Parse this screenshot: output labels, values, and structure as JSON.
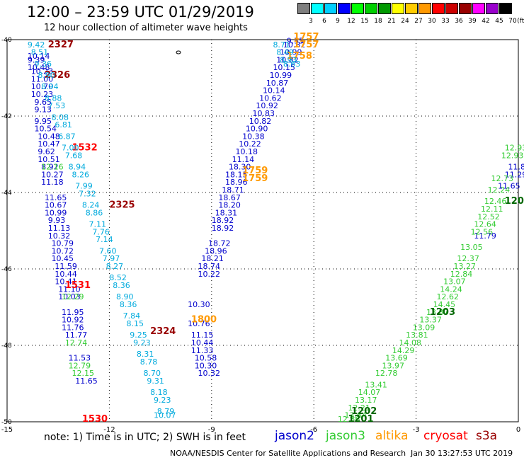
{
  "title": "12:00 – 23:59 UTC 01/29/2019",
  "subtitle": "12 hour collection of altimeter wave heights",
  "legend": {
    "labels": [
      "3",
      "6",
      "9",
      "12",
      "15",
      "18",
      "21",
      "24",
      "27",
      "30",
      "33",
      "36",
      "39",
      "42",
      "45",
      "70",
      "(ft)"
    ],
    "colors": [
      "#7f7f7f",
      "#00ffff",
      "#00cfff",
      "#0000ff",
      "#00ff00",
      "#00cf00",
      "#009900",
      "#ffff00",
      "#ffcc00",
      "#ff9900",
      "#ff0000",
      "#cc0000",
      "#990000",
      "#ff00ff",
      "#9900cc",
      "#000000"
    ]
  },
  "chart_data": {
    "type": "scatter",
    "xlim": [
      -15,
      0
    ],
    "ylim": [
      -50,
      -40
    ],
    "xticks": [
      "-15",
      "-12",
      "-9",
      "-6",
      "-3",
      "0"
    ],
    "yticks": [
      "-40",
      "-42",
      "-44",
      "-46",
      "-48",
      "-50"
    ],
    "series": [
      {
        "name": "jason2",
        "color": "#0000cc",
        "points": [
          [
            -14.4,
            -40.5,
            "10.14"
          ],
          [
            -14.4,
            -40.6,
            "9.39"
          ],
          [
            -14.4,
            -40.8,
            "10.48"
          ],
          [
            -14.3,
            -40.9,
            "10.23"
          ],
          [
            -14.3,
            -41.1,
            "11.00"
          ],
          [
            -14.3,
            -41.3,
            "10.70"
          ],
          [
            -14.3,
            -41.5,
            "10.23"
          ],
          [
            -14.2,
            -41.7,
            "9.65"
          ],
          [
            -14.2,
            -41.9,
            "9.13"
          ],
          [
            -14.2,
            -42.2,
            "9.95"
          ],
          [
            -14.2,
            -42.4,
            "10.54"
          ],
          [
            -14.1,
            -42.6,
            "10.48"
          ],
          [
            -14.1,
            -42.8,
            "10.47"
          ],
          [
            -14.1,
            -43.0,
            "9.62"
          ],
          [
            -14.1,
            -43.2,
            "10.51"
          ],
          [
            -14.0,
            -43.4,
            "8.92"
          ],
          [
            -14.0,
            -43.6,
            "10.27"
          ],
          [
            -14.0,
            -43.8,
            "11.18"
          ],
          [
            -13.9,
            -44.2,
            "11.65"
          ],
          [
            -13.9,
            -44.4,
            "10.67"
          ],
          [
            -13.9,
            -44.6,
            "10.99"
          ],
          [
            -13.8,
            -44.8,
            "9.93"
          ],
          [
            -13.8,
            -45.0,
            "11.13"
          ],
          [
            -13.8,
            -45.2,
            "10.32"
          ],
          [
            -13.7,
            -45.4,
            "10.79"
          ],
          [
            -13.7,
            -45.6,
            "10.72"
          ],
          [
            -13.7,
            -45.8,
            "10.45"
          ],
          [
            -13.6,
            -46.0,
            "11.59"
          ],
          [
            -13.6,
            -46.2,
            "10.44"
          ],
          [
            -13.6,
            -46.4,
            "10.41"
          ],
          [
            -13.5,
            -46.6,
            "11.10"
          ],
          [
            -13.5,
            -46.8,
            "10.03"
          ],
          [
            -13.4,
            -47.2,
            "11.95"
          ],
          [
            -13.4,
            -47.4,
            "10.92"
          ],
          [
            -13.4,
            -47.6,
            "11.76"
          ],
          [
            -13.3,
            -47.8,
            "11.77"
          ],
          [
            -13.2,
            -48.4,
            "11.53"
          ],
          [
            -13.0,
            -49.0,
            "11.65"
          ],
          [
            -9.7,
            -47.0,
            "10.30"
          ],
          [
            -9.7,
            -47.5,
            "10.76"
          ],
          [
            -9.6,
            -47.8,
            "11.15"
          ],
          [
            -9.6,
            -48.0,
            "10.44"
          ],
          [
            -9.6,
            -48.2,
            "11.33"
          ],
          [
            -9.5,
            -48.4,
            "10.58"
          ],
          [
            -9.5,
            -48.6,
            "10.30"
          ],
          [
            -9.4,
            -48.8,
            "10.32"
          ],
          [
            -9.4,
            -46.2,
            "10.22"
          ],
          [
            -9.4,
            -46.0,
            "18.74"
          ],
          [
            -9.3,
            -45.8,
            "18.21"
          ],
          [
            -9.2,
            -45.6,
            "18.96"
          ],
          [
            -9.1,
            -45.4,
            "18.72"
          ],
          [
            -9.0,
            -45.0,
            "18.92"
          ],
          [
            -9.0,
            -44.8,
            "18.92"
          ],
          [
            -8.9,
            -44.6,
            "18.31"
          ],
          [
            -8.8,
            -44.4,
            "18.20"
          ],
          [
            -8.8,
            -44.2,
            "18.67"
          ],
          [
            -8.7,
            -44.0,
            "18.71"
          ],
          [
            -8.6,
            -43.8,
            "18.96"
          ],
          [
            -8.6,
            -43.6,
            "18.15"
          ],
          [
            -8.5,
            -43.4,
            "18.30"
          ],
          [
            -8.4,
            -43.2,
            "11.14"
          ],
          [
            -8.3,
            -43.0,
            "10.18"
          ],
          [
            -8.2,
            -42.8,
            "10.22"
          ],
          [
            -8.1,
            -42.6,
            "10.38"
          ],
          [
            -8.0,
            -42.4,
            "10.90"
          ],
          [
            -7.9,
            -42.2,
            "10.82"
          ],
          [
            -7.8,
            -42.0,
            "10.83"
          ],
          [
            -7.7,
            -41.8,
            "10.92"
          ],
          [
            -7.6,
            -41.6,
            "10.62"
          ],
          [
            -7.5,
            -41.4,
            "10.14"
          ],
          [
            -7.4,
            -41.2,
            "10.87"
          ],
          [
            -7.3,
            -41.0,
            "10.99"
          ],
          [
            -7.2,
            -40.8,
            "10.15"
          ],
          [
            -7.1,
            -40.6,
            "10.82"
          ],
          [
            -7.0,
            -40.4,
            "10.99"
          ],
          [
            -6.9,
            -40.2,
            "10.82"
          ],
          [
            -6.8,
            -40.1,
            "9.55"
          ],
          [
            -0.3,
            -43.4,
            "11.83"
          ],
          [
            -0.4,
            -43.6,
            "11.29"
          ],
          [
            -0.6,
            -43.9,
            "11.65"
          ],
          [
            -1.3,
            -45.2,
            "11.79"
          ]
        ]
      },
      {
        "name": "jason3",
        "color": "#33cc33",
        "points": [
          [
            -14.0,
            -43.4,
            "12.16"
          ],
          [
            -13.4,
            -46.8,
            "12.29"
          ],
          [
            -13.3,
            -48.0,
            "12.74"
          ],
          [
            -13.2,
            -48.6,
            "12.79"
          ],
          [
            -13.1,
            -48.8,
            "12.15"
          ],
          [
            -0.4,
            -42.9,
            "12.93"
          ],
          [
            -0.5,
            -43.1,
            "12.93"
          ],
          [
            -0.8,
            -43.7,
            "12.73"
          ],
          [
            -0.9,
            -44.0,
            "12.24"
          ],
          [
            -1.0,
            -44.3,
            "12.46"
          ],
          [
            -1.1,
            -44.5,
            "12.11"
          ],
          [
            -1.2,
            -44.7,
            "12.52"
          ],
          [
            -1.3,
            -44.9,
            "12.64"
          ],
          [
            -1.4,
            -45.1,
            "12.56"
          ],
          [
            -1.7,
            -45.5,
            "13.05"
          ],
          [
            -1.8,
            -45.8,
            "12.37"
          ],
          [
            -1.9,
            -46.0,
            "13.27"
          ],
          [
            -2.0,
            -46.2,
            "12.84"
          ],
          [
            -2.2,
            -46.4,
            "13.07"
          ],
          [
            -2.3,
            -46.6,
            "14.24"
          ],
          [
            -2.4,
            -46.8,
            "12.62"
          ],
          [
            -2.5,
            -47.0,
            "14.45"
          ],
          [
            -2.7,
            -47.2,
            "13.87"
          ],
          [
            -2.9,
            -47.4,
            "13.37"
          ],
          [
            -3.1,
            -47.6,
            "13.09"
          ],
          [
            -3.3,
            -47.8,
            "13.81"
          ],
          [
            -3.5,
            -48.0,
            "14.08"
          ],
          [
            -3.7,
            -48.2,
            "14.29"
          ],
          [
            -3.9,
            -48.4,
            "13.69"
          ],
          [
            -4.0,
            -48.6,
            "13.97"
          ],
          [
            -4.2,
            -48.8,
            "12.78"
          ],
          [
            -4.5,
            -49.1,
            "13.41"
          ],
          [
            -4.7,
            -49.3,
            "14.07"
          ],
          [
            -4.8,
            -49.5,
            "13.17"
          ],
          [
            -5.0,
            -49.7,
            "12.21"
          ],
          [
            -5.1,
            -49.9,
            "13.64"
          ],
          [
            -5.3,
            -50.0,
            "12.86"
          ]
        ]
      },
      {
        "name": "altika",
        "color": "#ff9900",
        "points": [
          [
            -6.6,
            -40.0,
            "1757"
          ],
          [
            -6.6,
            -40.2,
            "1757"
          ],
          [
            -6.8,
            -40.5,
            "1758"
          ],
          [
            -8.1,
            -43.5,
            "1759"
          ],
          [
            -8.1,
            -43.7,
            "1759"
          ],
          [
            -9.6,
            -47.4,
            "1800"
          ]
        ]
      },
      {
        "name": "cryosat",
        "color": "#ff0000",
        "points": [
          [
            -13.1,
            -42.9,
            "1532"
          ],
          [
            -13.3,
            -46.5,
            "1531"
          ],
          [
            -12.8,
            -50.0,
            "1530"
          ]
        ]
      },
      {
        "name": "s3a",
        "color": "#990000",
        "points": [
          [
            -13.8,
            -40.2,
            "2327"
          ],
          [
            -13.9,
            -41.0,
            "2326"
          ],
          [
            -12.0,
            -44.4,
            "2325"
          ],
          [
            -10.8,
            -47.7,
            "2324"
          ]
        ]
      },
      {
        "name": "",
        "color": "#00aadd",
        "points": [
          [
            -14.4,
            -40.2,
            "9.42"
          ],
          [
            -14.3,
            -40.4,
            "8.51"
          ],
          [
            -14.2,
            -40.7,
            "9.36"
          ],
          [
            -14.1,
            -41.0,
            "8.90"
          ],
          [
            -14.0,
            -41.3,
            "8.94"
          ],
          [
            -13.9,
            -41.6,
            "8.88"
          ],
          [
            -13.8,
            -41.8,
            "7.53"
          ],
          [
            -13.7,
            -42.1,
            "8.08"
          ],
          [
            -13.6,
            -42.3,
            "6.81"
          ],
          [
            -13.5,
            -42.6,
            "6.87"
          ],
          [
            -13.4,
            -42.9,
            "7.00"
          ],
          [
            -13.3,
            -43.1,
            "7.68"
          ],
          [
            -13.2,
            -43.4,
            "8.94"
          ],
          [
            -13.1,
            -43.6,
            "8.26"
          ],
          [
            -13.0,
            -43.9,
            "7.99"
          ],
          [
            -12.9,
            -44.1,
            "7.32"
          ],
          [
            -12.8,
            -44.4,
            "8.24"
          ],
          [
            -12.7,
            -44.6,
            "8.86"
          ],
          [
            -12.6,
            -44.9,
            "7.11"
          ],
          [
            -12.5,
            -45.1,
            "7.76"
          ],
          [
            -12.4,
            -45.3,
            "7.14"
          ],
          [
            -12.3,
            -45.6,
            "7.60"
          ],
          [
            -12.2,
            -45.8,
            "7.97"
          ],
          [
            -12.1,
            -46.0,
            "8.27"
          ],
          [
            -12.0,
            -46.3,
            "8.52"
          ],
          [
            -11.9,
            -46.5,
            "8.36"
          ],
          [
            -11.8,
            -46.8,
            "8.90"
          ],
          [
            -11.7,
            -47.0,
            "8.36"
          ],
          [
            -11.6,
            -47.3,
            "7.84"
          ],
          [
            -11.5,
            -47.5,
            "8.15"
          ],
          [
            -11.4,
            -47.8,
            "9.25"
          ],
          [
            -11.3,
            -48.0,
            "9.23"
          ],
          [
            -11.2,
            -48.3,
            "8.31"
          ],
          [
            -11.1,
            -48.5,
            "8.78"
          ],
          [
            -11.0,
            -48.8,
            "8.70"
          ],
          [
            -10.9,
            -49.0,
            "9.31"
          ],
          [
            -10.8,
            -49.3,
            "8.18"
          ],
          [
            -10.7,
            -49.5,
            "9.23"
          ],
          [
            -10.6,
            -49.8,
            "8.79"
          ],
          [
            -10.7,
            -49.9,
            "10.07"
          ],
          [
            -7.2,
            -40.2,
            "8.71"
          ],
          [
            -7.1,
            -40.4,
            "8.49"
          ],
          [
            -7.0,
            -40.6,
            "8.93"
          ],
          [
            -6.9,
            -40.7,
            "8.63"
          ]
        ]
      }
    ]
  },
  "station_labels": [
    {
      "text": "1204",
      "x": -0.4,
      "y": -44.3,
      "color": "#006600"
    },
    {
      "text": "1203",
      "x": -2.6,
      "y": -47.2,
      "color": "#006600"
    },
    {
      "text": "1202",
      "x": -4.9,
      "y": -49.8,
      "color": "#006600"
    },
    {
      "text": "1201",
      "x": -5.0,
      "y": -50.0,
      "color": "#006600"
    }
  ],
  "note": "note: 1) Time is in UTC; 2) SWH is in feet",
  "missions": [
    {
      "label": "jason2",
      "color": "#0000cc"
    },
    {
      "label": "jason3",
      "color": "#33cc33"
    },
    {
      "label": "altika",
      "color": "#ff9900"
    },
    {
      "label": "cryosat",
      "color": "#ff0000"
    },
    {
      "label": "s3a",
      "color": "#990000"
    }
  ],
  "credit": "NOAA/NESDIS Center for Satellite Applications and Research",
  "timestamp": "Jan 30 13:27:53 UTC 2019"
}
